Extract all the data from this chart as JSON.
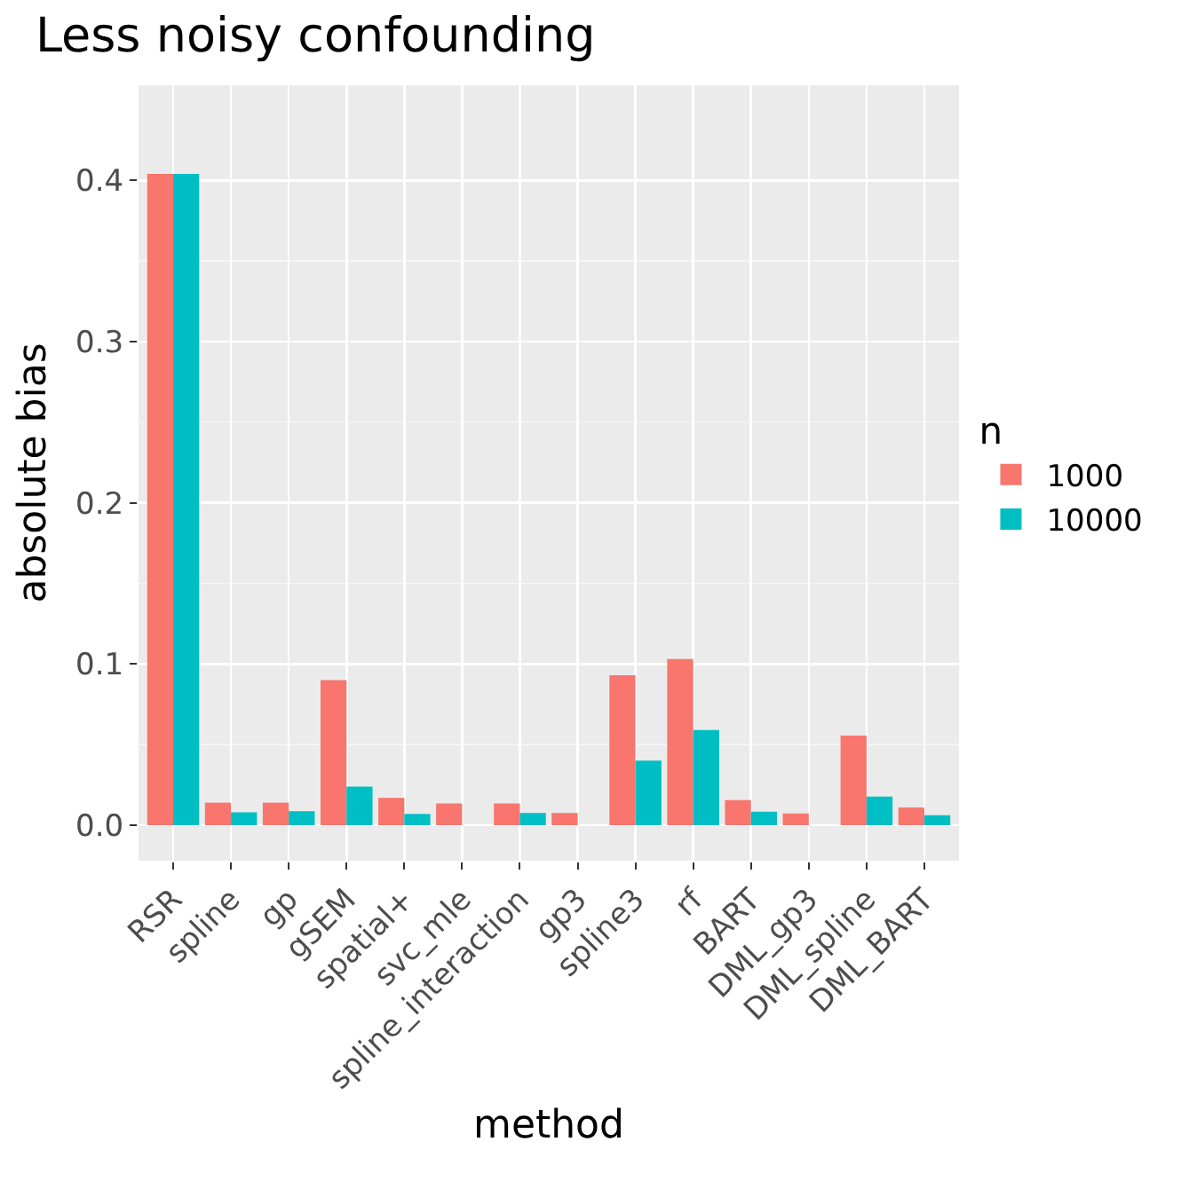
{
  "chart_data": {
    "type": "bar",
    "title": "Less noisy confounding",
    "xlabel": "method",
    "ylabel": "absolute bias",
    "legend_title": "n",
    "categories": [
      "RSR",
      "spline",
      "gp",
      "gSEM",
      "spatial+",
      "svc_mle",
      "spline_interaction",
      "gp3",
      "spline3",
      "rf",
      "BART",
      "DML_gp3",
      "DML_spline",
      "DML_BART"
    ],
    "series": [
      {
        "name": "1000",
        "color": "#f8766d",
        "values": [
          0.404,
          0.014,
          0.014,
          0.09,
          0.017,
          0.0135,
          0.0135,
          0.0076,
          0.093,
          0.103,
          0.0156,
          0.0073,
          0.0556,
          0.011
        ]
      },
      {
        "name": "10000",
        "color": "#00bfc4",
        "values": [
          0.404,
          0.008,
          0.0087,
          0.024,
          0.007,
          null,
          0.0076,
          null,
          0.04,
          0.059,
          0.0084,
          null,
          0.0178,
          0.0062
        ]
      }
    ],
    "ylim": [
      -0.022,
      0.459
    ],
    "yticks": [
      {
        "value": 0,
        "label": "0.0"
      },
      0.1,
      0.2,
      0.3,
      0.4
    ],
    "grid": true,
    "legend": "right"
  }
}
